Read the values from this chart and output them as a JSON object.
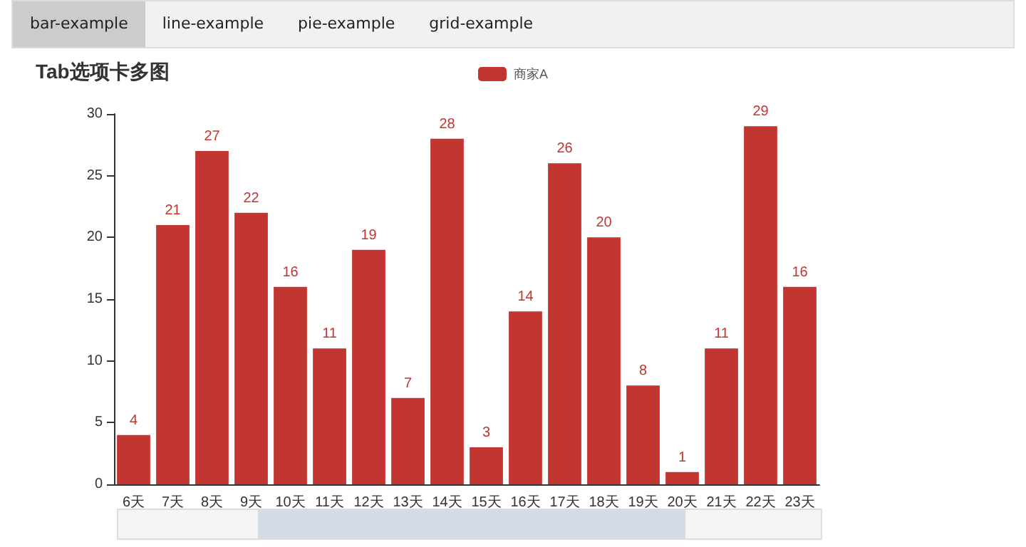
{
  "chart_data": {
    "type": "bar",
    "title": "Tab选项卡多图",
    "annotations": [
      "bar-example",
      "line-example",
      "pie-example",
      "grid-example"
    ],
    "categories": [
      "6天",
      "7天",
      "8天",
      "9天",
      "10天",
      "11天",
      "12天",
      "13天",
      "14天",
      "15天",
      "16天",
      "17天",
      "18天",
      "19天",
      "20天",
      "21天",
      "22天",
      "23天"
    ],
    "series": [
      {
        "name": "商家A",
        "color": "#c23531",
        "values": [
          4,
          21,
          27,
          22,
          16,
          11,
          19,
          7,
          28,
          3,
          14,
          26,
          20,
          8,
          1,
          11,
          29,
          16
        ]
      }
    ],
    "ylim": [
      0,
      30
    ],
    "yticks": [
      0,
      5,
      10,
      15,
      20,
      25,
      30
    ],
    "grid": false,
    "legend": "top",
    "data_labels": true
  }
}
